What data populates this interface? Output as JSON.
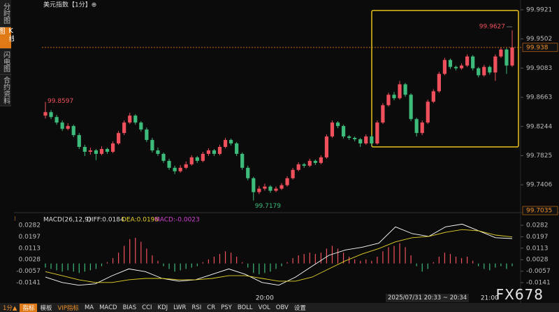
{
  "sidebar": [
    "分时图",
    "K线图",
    "闪电图",
    "合约资料"
  ],
  "toolbar": [
    "1分▲",
    "指标",
    "模板",
    "VIP指标",
    "MA",
    "MACD",
    "BIAS",
    "CCI",
    "KDJ",
    "LWR",
    "RSI",
    "CR",
    "PSY",
    "BOLL",
    "VOL",
    "OBV",
    "设置"
  ],
  "watermark": "FX678",
  "date_range": "2025/07/31 20:33 ~ 20:34",
  "chart_data": {
    "type": "candlestick",
    "title": "美元指数【1分】⊕",
    "up_color": "#f0505c",
    "down_color": "#3dbb7a",
    "ylim": [
      99.7035,
      99.9921
    ],
    "yticks": [
      99.9921,
      99.9502,
      99.9083,
      99.8663,
      99.8244,
      99.7825,
      99.7406
    ],
    "times": [
      null,
      null,
      null,
      null,
      null,
      null,
      null,
      null,
      null,
      null,
      null,
      null,
      null,
      null,
      null,
      null,
      null,
      null,
      null,
      null,
      null,
      null,
      null,
      null,
      null,
      null,
      null,
      null,
      null,
      null,
      null,
      null,
      null,
      null,
      null,
      null,
      null,
      null,
      null,
      "20:00",
      null,
      null,
      null,
      null,
      null,
      null,
      null,
      null,
      null,
      null,
      null,
      null,
      null,
      null,
      null,
      null,
      null,
      null,
      null,
      null,
      null,
      null,
      null,
      null,
      null,
      null,
      null,
      null,
      null,
      null,
      null,
      null,
      null,
      null,
      null,
      null,
      null,
      null,
      null,
      "21:00",
      null,
      null,
      null,
      null
    ],
    "candles": [
      [
        99.84,
        99.8597,
        99.836,
        99.845
      ],
      [
        99.845,
        99.848,
        99.835,
        99.838
      ],
      [
        99.838,
        99.841,
        99.827,
        99.83
      ],
      [
        99.83,
        99.833,
        99.818,
        99.821
      ],
      [
        99.821,
        99.829,
        99.819,
        99.825
      ],
      [
        99.825,
        99.827,
        99.809,
        99.812
      ],
      [
        99.812,
        99.815,
        99.792,
        99.795
      ],
      [
        99.795,
        99.798,
        99.782,
        99.788
      ],
      [
        99.788,
        99.794,
        99.784,
        99.79
      ],
      [
        99.79,
        99.792,
        99.776,
        99.785
      ],
      [
        99.785,
        99.796,
        99.783,
        99.792
      ],
      [
        99.792,
        99.794,
        99.785,
        99.788
      ],
      [
        99.788,
        99.803,
        99.786,
        99.8
      ],
      [
        99.8,
        99.818,
        99.798,
        99.815
      ],
      [
        99.815,
        99.833,
        99.812,
        99.83
      ],
      [
        99.83,
        99.844,
        99.828,
        99.84
      ],
      [
        99.84,
        99.842,
        99.827,
        99.83
      ],
      [
        99.83,
        99.832,
        99.817,
        99.82
      ],
      [
        99.82,
        99.823,
        99.802,
        99.805
      ],
      [
        99.805,
        99.808,
        99.787,
        99.79
      ],
      [
        99.79,
        99.794,
        99.782,
        99.785
      ],
      [
        99.785,
        99.787,
        99.772,
        99.775
      ],
      [
        99.775,
        99.778,
        99.762,
        99.765
      ],
      [
        99.765,
        99.768,
        99.756,
        99.76
      ],
      [
        99.76,
        99.769,
        99.758,
        99.765
      ],
      [
        99.765,
        99.774,
        99.763,
        99.77
      ],
      [
        99.77,
        99.783,
        99.768,
        99.78
      ],
      [
        99.78,
        99.782,
        99.772,
        99.775
      ],
      [
        99.775,
        99.788,
        99.773,
        99.785
      ],
      [
        99.785,
        99.793,
        99.782,
        99.79
      ],
      [
        99.79,
        99.792,
        99.782,
        99.785
      ],
      [
        99.785,
        99.798,
        99.783,
        99.795
      ],
      [
        99.795,
        99.808,
        99.793,
        99.805
      ],
      [
        99.805,
        99.807,
        99.797,
        99.8
      ],
      [
        99.8,
        99.802,
        99.782,
        99.785
      ],
      [
        99.785,
        99.787,
        99.762,
        99.765
      ],
      [
        99.765,
        99.768,
        99.747,
        99.75
      ],
      [
        99.75,
        99.752,
        99.7179,
        99.73
      ],
      [
        99.73,
        99.739,
        99.727,
        99.735
      ],
      [
        99.735,
        99.742,
        99.732,
        99.738
      ],
      [
        99.738,
        99.74,
        99.729,
        99.732
      ],
      [
        99.732,
        99.738,
        99.73,
        99.735
      ],
      [
        99.735,
        99.743,
        99.733,
        99.74
      ],
      [
        99.74,
        99.753,
        99.738,
        99.75
      ],
      [
        99.75,
        99.765,
        99.748,
        99.762
      ],
      [
        99.762,
        99.773,
        99.76,
        99.77
      ],
      [
        99.77,
        99.772,
        99.765,
        99.768
      ],
      [
        99.768,
        99.778,
        99.766,
        99.775
      ],
      [
        99.775,
        99.777,
        99.769,
        99.772
      ],
      [
        99.772,
        99.783,
        99.77,
        99.78
      ],
      [
        99.78,
        99.813,
        99.778,
        99.81
      ],
      [
        99.81,
        99.833,
        99.808,
        99.83
      ],
      [
        99.83,
        99.832,
        99.822,
        99.825
      ],
      [
        99.825,
        99.827,
        99.807,
        99.81
      ],
      [
        99.81,
        99.812,
        99.805,
        99.808
      ],
      [
        99.808,
        99.81,
        99.803,
        99.806
      ],
      [
        99.806,
        99.808,
        99.795,
        99.8
      ],
      [
        99.8,
        99.813,
        99.798,
        99.81
      ],
      [
        99.81,
        99.812,
        99.797,
        99.8
      ],
      [
        99.8,
        99.833,
        99.798,
        99.83
      ],
      [
        99.83,
        99.858,
        99.828,
        99.855
      ],
      [
        99.855,
        99.873,
        99.853,
        99.87
      ],
      [
        99.87,
        99.874,
        99.862,
        99.865
      ],
      [
        99.865,
        99.89,
        99.863,
        99.885
      ],
      [
        99.885,
        99.887,
        99.867,
        99.87
      ],
      [
        99.87,
        99.872,
        99.832,
        99.835
      ],
      [
        99.835,
        99.837,
        99.81,
        99.815
      ],
      [
        99.815,
        99.833,
        99.812,
        99.83
      ],
      [
        99.83,
        99.863,
        99.828,
        99.86
      ],
      [
        99.86,
        99.878,
        99.858,
        99.875
      ],
      [
        99.875,
        99.903,
        99.873,
        99.9
      ],
      [
        99.9,
        99.923,
        99.898,
        99.92
      ],
      [
        99.92,
        99.922,
        99.907,
        99.91
      ],
      [
        99.91,
        99.912,
        99.905,
        99.908
      ],
      [
        99.908,
        99.915,
        99.906,
        99.912
      ],
      [
        99.912,
        99.928,
        99.91,
        99.925
      ],
      [
        99.925,
        99.927,
        99.905,
        99.908
      ],
      [
        99.908,
        99.91,
        99.895,
        99.898
      ],
      [
        99.898,
        99.913,
        99.896,
        99.91
      ],
      [
        99.91,
        99.912,
        99.899,
        99.902
      ],
      [
        99.902,
        99.928,
        99.89,
        99.925
      ],
      [
        99.925,
        99.938,
        99.923,
        99.935
      ],
      [
        99.935,
        99.937,
        99.9,
        99.912
      ],
      [
        99.912,
        99.9627,
        99.91,
        99.938
      ]
    ],
    "macd": {
      "title": "MACD(26,12,9)",
      "diff_text": "DIFF:0.0184",
      "dea_text": "DEA:0.0196",
      "macd_text": "MACD:-0.0023",
      "ylim": [
        -0.0141,
        0.0282
      ],
      "yticks": [
        0.0282,
        0.0197,
        0.0113,
        0.0028,
        -0.0057,
        -0.0141
      ],
      "hist": [
        -0.003,
        -0.004,
        -0.005,
        -0.006,
        -0.005,
        -0.006,
        -0.007,
        -0.006,
        -0.005,
        -0.004,
        -0.002,
        0.001,
        0.004,
        0.008,
        0.013,
        0.018,
        0.019,
        0.016,
        0.011,
        0.006,
        0.002,
        -0.002,
        -0.004,
        -0.006,
        -0.005,
        -0.004,
        -0.003,
        -0.002,
        0.001,
        0.003,
        0.005,
        0.007,
        0.009,
        0.008,
        0.005,
        0.001,
        -0.003,
        -0.007,
        -0.008,
        -0.007,
        -0.006,
        -0.004,
        -0.002,
        0.001,
        0.004,
        0.006,
        0.007,
        0.008,
        0.007,
        0.008,
        0.011,
        0.013,
        0.011,
        0.008,
        0.005,
        0.003,
        0.002,
        0.003,
        0.002,
        0.005,
        0.009,
        0.012,
        0.013,
        0.015,
        0.012,
        0.006,
        -0.002,
        -0.006,
        -0.004,
        0.001,
        0.005,
        0.008,
        0.007,
        0.005,
        0.004,
        0.005,
        0.002,
        -0.002,
        -0.004,
        -0.005,
        -0.003,
        -0.002,
        -0.004,
        -0.002
      ],
      "series": [
        {
          "name": "DIFF",
          "color": "#ffffff",
          "values": [
            -0.01,
            -0.014,
            -0.016,
            -0.015,
            -0.009,
            -0.004,
            -0.006,
            -0.011,
            -0.013,
            -0.012,
            -0.008,
            -0.004,
            -0.008,
            -0.014,
            -0.016,
            -0.01,
            -0.002,
            0.006,
            0.01,
            0.012,
            0.015,
            0.027,
            0.022,
            0.02,
            0.027,
            0.029,
            0.024,
            0.019,
            0.0184
          ]
        },
        {
          "name": "DEA",
          "color": "#e6d22a",
          "values": [
            -0.006,
            -0.009,
            -0.012,
            -0.014,
            -0.014,
            -0.012,
            -0.011,
            -0.011,
            -0.012,
            -0.012,
            -0.011,
            -0.009,
            -0.009,
            -0.011,
            -0.013,
            -0.013,
            -0.01,
            -0.004,
            0.002,
            0.007,
            0.011,
            0.016,
            0.019,
            0.02,
            0.023,
            0.025,
            0.024,
            0.021,
            0.0196
          ]
        }
      ]
    }
  }
}
